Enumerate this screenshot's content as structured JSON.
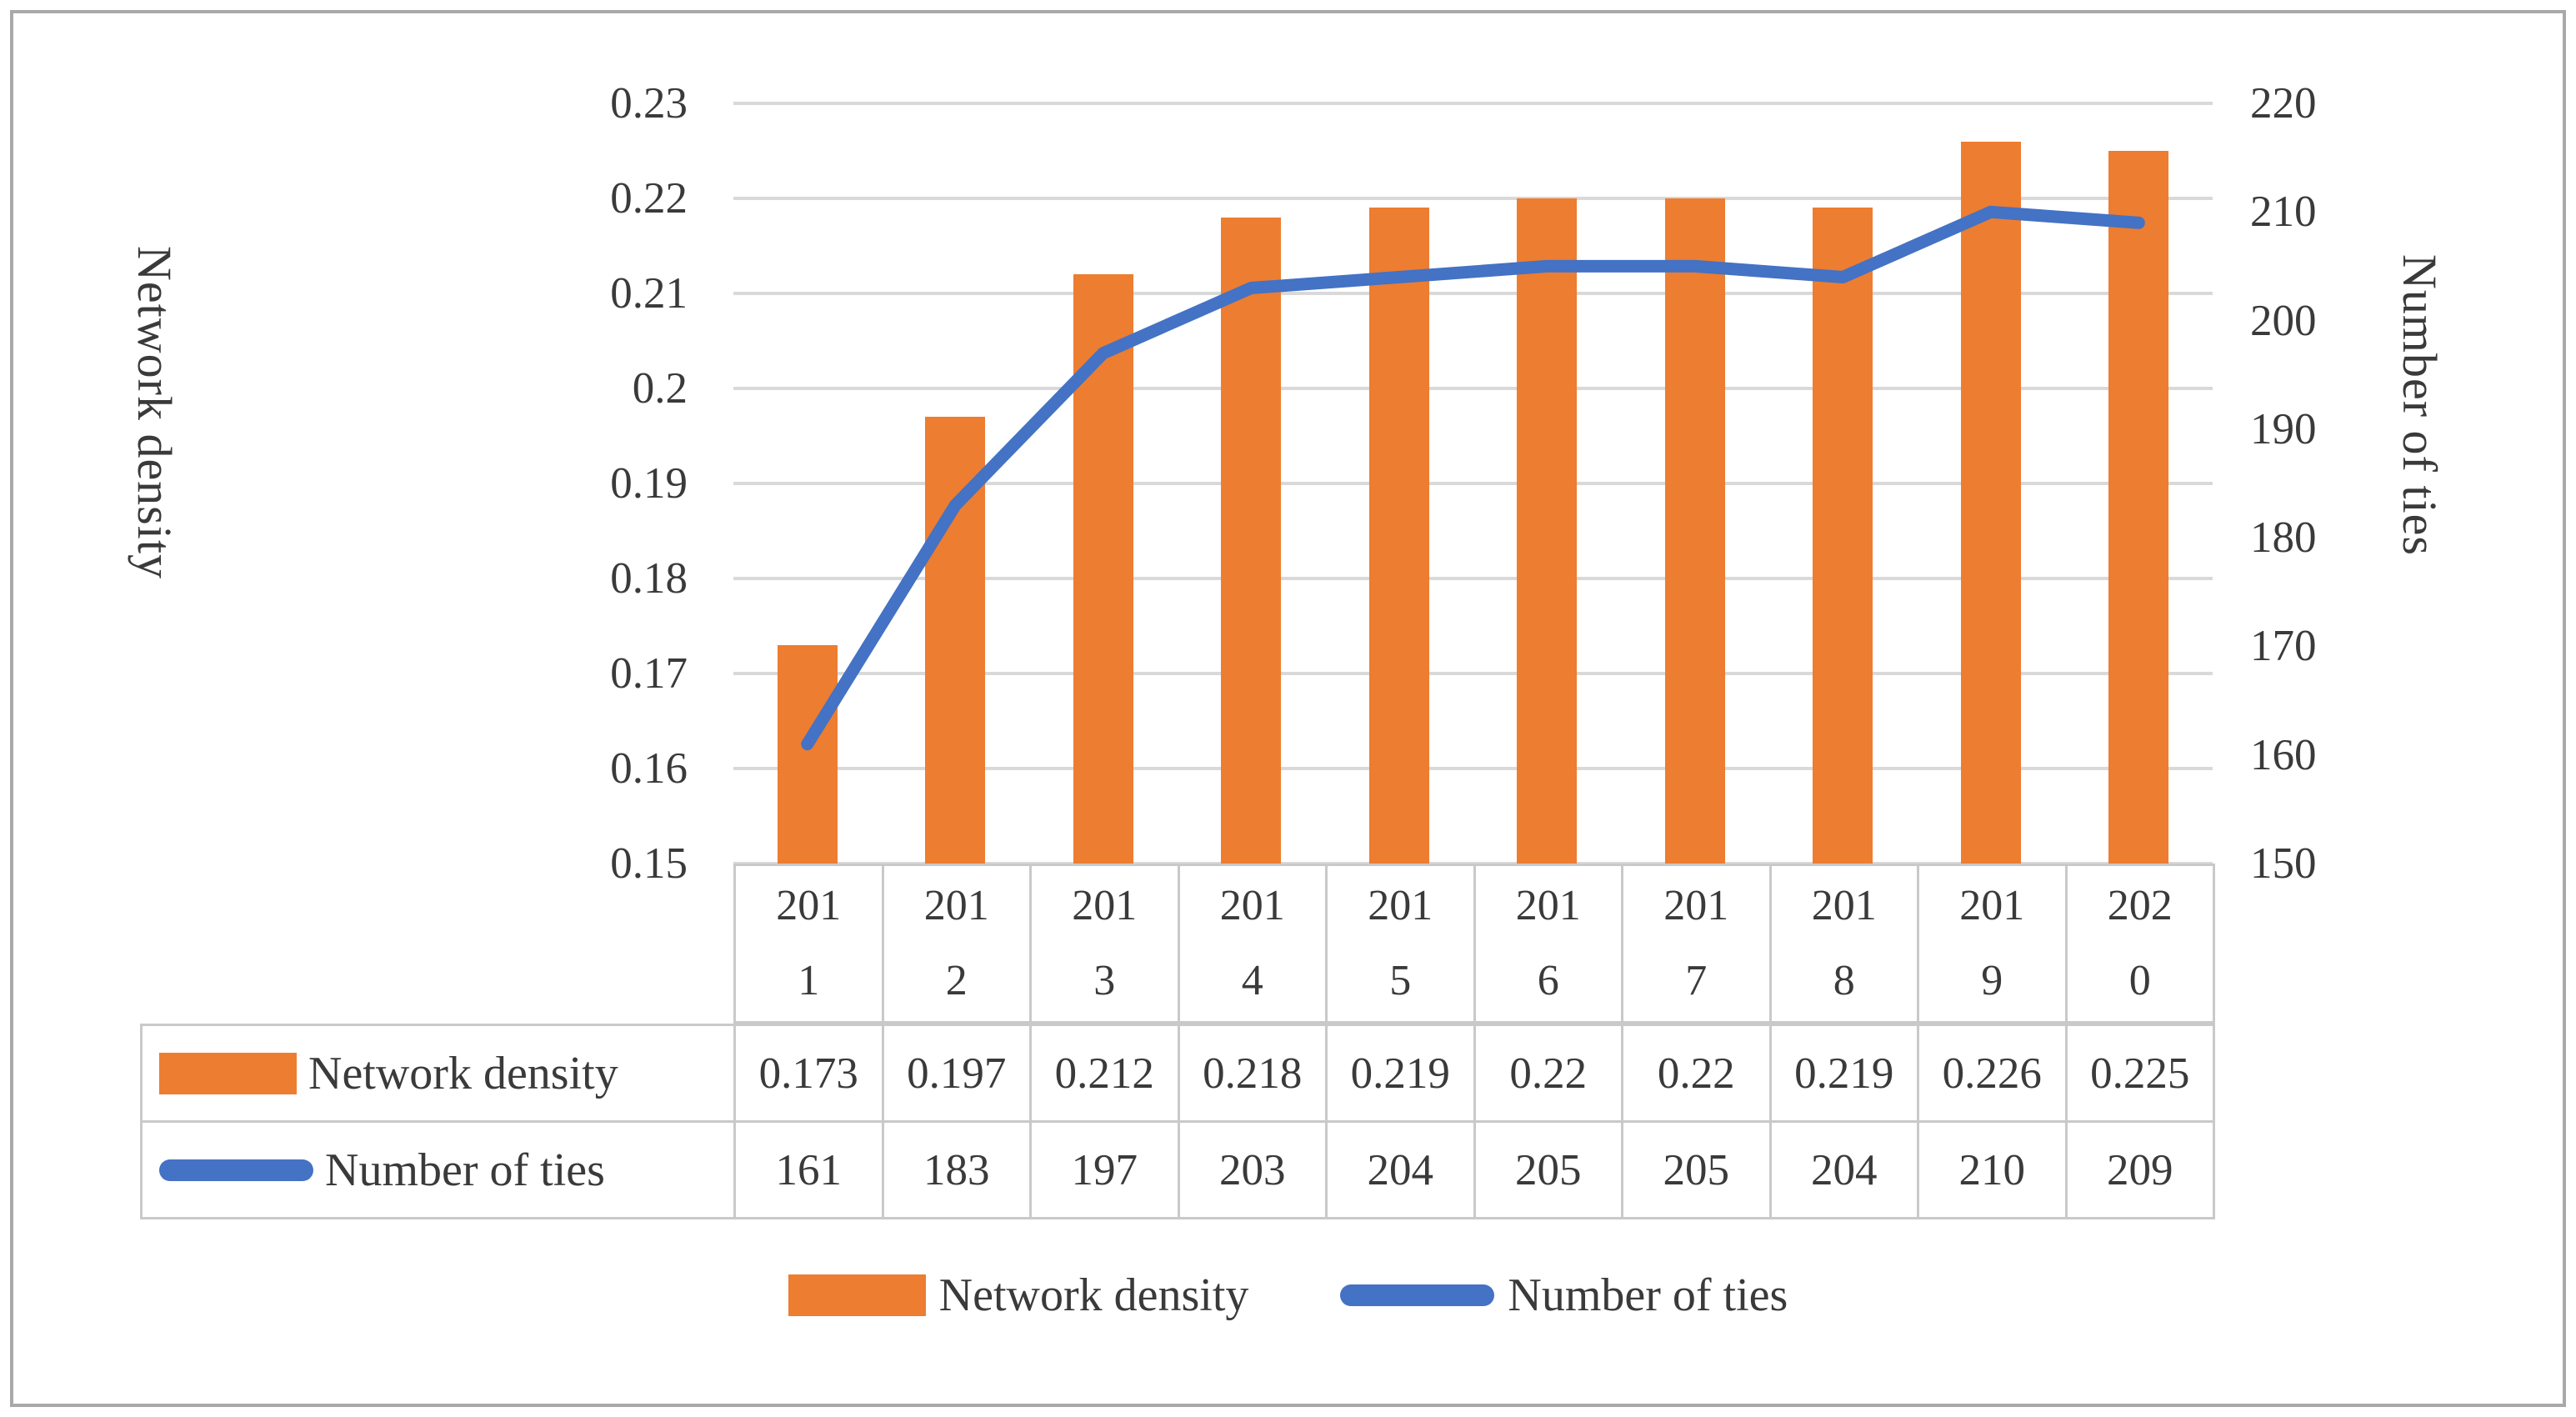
{
  "chart_data": {
    "type": "bar",
    "subtype": "combo-bar-line-dual-axis",
    "categories": [
      "2011",
      "2012",
      "2013",
      "2014",
      "2015",
      "2016",
      "2017",
      "2018",
      "2019",
      "2020"
    ],
    "series": [
      {
        "name": "Network density",
        "type": "bar",
        "axis": "left",
        "color": "#ed7d31",
        "values": [
          0.173,
          0.197,
          0.212,
          0.218,
          0.219,
          0.22,
          0.22,
          0.219,
          0.226,
          0.225
        ]
      },
      {
        "name": "Number of ties",
        "type": "line",
        "axis": "right",
        "color": "#4472c4",
        "values": [
          161,
          183,
          197,
          203,
          204,
          205,
          205,
          204,
          210,
          209
        ]
      }
    ],
    "left_axis": {
      "title": "Network density",
      "min": 0.15,
      "max": 0.23,
      "ticks": [
        "0.23",
        "0.22",
        "0.21",
        "0.2",
        "0.19",
        "0.18",
        "0.17",
        "0.16",
        "0.15"
      ]
    },
    "right_axis": {
      "title": "Number of ties",
      "min": 150,
      "max": 220,
      "ticks": [
        "220",
        "210",
        "200",
        "190",
        "180",
        "170",
        "160",
        "150"
      ]
    },
    "grid": true,
    "legend_position": "bottom",
    "legend": [
      "Network density",
      "Number of ties"
    ],
    "data_table": {
      "rows": [
        {
          "label": "Network density",
          "key": "bar-swatch",
          "values": [
            "0.173",
            "0.197",
            "0.212",
            "0.218",
            "0.219",
            "0.22",
            "0.22",
            "0.219",
            "0.226",
            "0.225"
          ]
        },
        {
          "label": "Number of ties",
          "key": "line-swatch",
          "values": [
            "161",
            "183",
            "197",
            "203",
            "204",
            "205",
            "205",
            "204",
            "210",
            "209"
          ]
        }
      ]
    },
    "colors": {
      "bar": "#ed7d31",
      "line": "#4472c4",
      "gridline": "#d9d9d9",
      "table_border": "#c9c9c9",
      "text": "#3a3a3a",
      "frame_border": "#a9a9a9"
    }
  }
}
